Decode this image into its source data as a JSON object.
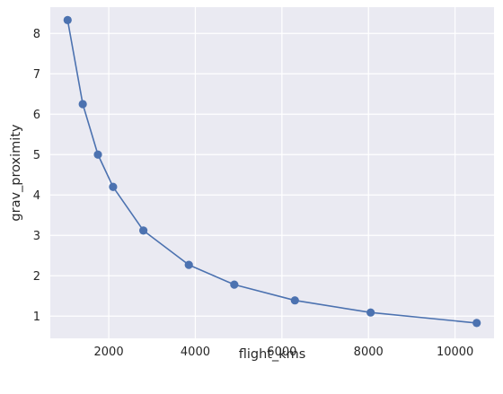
{
  "chart_data": {
    "type": "line",
    "title": "",
    "xlabel": "flight_kms",
    "ylabel": "grav_proximity",
    "xlim": [
      650,
      10900
    ],
    "ylim": [
      0.45,
      8.65
    ],
    "x_ticks": [
      2000,
      4000,
      6000,
      8000,
      10000
    ],
    "x_tick_labels": [
      "2000",
      "4000",
      "6000",
      "8000",
      "10000"
    ],
    "y_ticks": [
      1,
      2,
      3,
      4,
      5,
      6,
      7,
      8
    ],
    "y_tick_labels": [
      "1",
      "2",
      "3",
      "4",
      "5",
      "6",
      "7",
      "8"
    ],
    "grid": true,
    "legend": "none",
    "series": [
      {
        "x": [
          1050,
          1400,
          1750,
          2100,
          2800,
          3850,
          4900,
          6300,
          8050,
          10500
        ],
        "y": [
          8.33,
          6.25,
          5.0,
          4.2,
          3.12,
          2.27,
          1.78,
          1.39,
          1.09,
          0.83
        ],
        "color": "#4c72b0",
        "marker": "circle"
      }
    ],
    "style": {
      "background": "#eaeaf2",
      "grid_color": "#ffffff",
      "text_color": "#262626"
    }
  }
}
